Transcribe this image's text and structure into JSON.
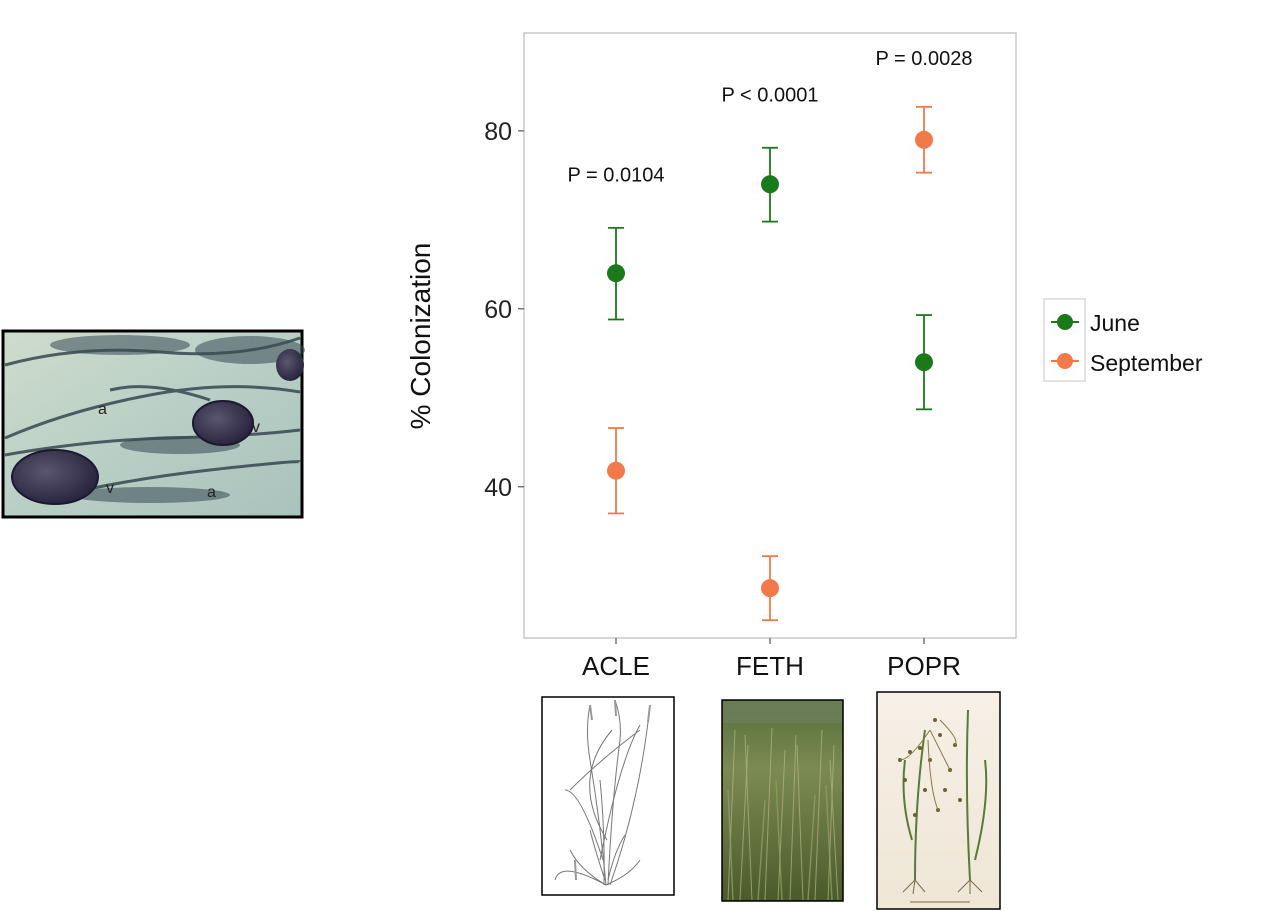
{
  "colors": {
    "June": "#1a7a1a",
    "September": "#f27a4a",
    "panel_border": "#c8c8c8"
  },
  "chart_data": {
    "type": "scatter",
    "title": "",
    "xlabel": "",
    "ylabel": "% Colonization",
    "categories": [
      "ACLE",
      "FETH",
      "POPR"
    ],
    "ylim": [
      23,
      91
    ],
    "yticks": [
      40,
      60,
      80
    ],
    "series": [
      {
        "name": "June",
        "values": [
          64,
          74,
          54
        ],
        "lower": [
          58.8,
          69.8,
          48.7
        ],
        "upper": [
          69.1,
          78.1,
          59.3
        ]
      },
      {
        "name": "September",
        "values": [
          41.8,
          28.6,
          79
        ],
        "lower": [
          37,
          25,
          75.3
        ],
        "upper": [
          46.6,
          32.2,
          82.7
        ]
      }
    ],
    "annotations": [
      {
        "category": "ACLE",
        "text": "P = 0.0104",
        "y": 74.3
      },
      {
        "category": "FETH",
        "text": "P < 0.0001",
        "y": 83.3
      },
      {
        "category": "POPR",
        "text": "P = 0.0028",
        "y": 87.4
      }
    ],
    "legend": {
      "placement": "right",
      "entries": [
        "June",
        "September"
      ]
    },
    "grid": false
  },
  "images": {
    "root_micrograph": {
      "labels": [
        "a",
        "v",
        "v",
        "a"
      ]
    },
    "plant_acle": "ACLE plant illustration",
    "plant_feth": "FETH grassland photo",
    "plant_popr": "POPR botanical plate"
  }
}
